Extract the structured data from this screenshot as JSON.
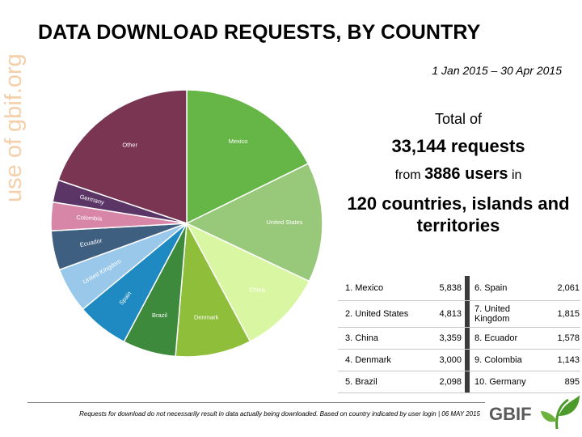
{
  "watermark": "use of gbif.org",
  "title": "DATA DOWNLOAD REQUESTS, BY COUNTRY",
  "date_range": "1 Jan 2015 – 30 Apr 2015",
  "summary": {
    "line1": "Total of",
    "line2": "33,144 requests",
    "from": "from",
    "users": "3886 users",
    "in": "in",
    "line4": "120 countries, islands and territories"
  },
  "table": [
    {
      "rank1": "1. Mexico",
      "val1": "5,838",
      "rank2": "6. Spain",
      "val2": "2,061"
    },
    {
      "rank1": "2. United States",
      "val1": "4,813",
      "rank2": "7. United Kingdom",
      "val2": "1,815"
    },
    {
      "rank1": "3. China",
      "val1": "3,359",
      "rank2": "8. Ecuador",
      "val2": "1,578"
    },
    {
      "rank1": "4. Denmark",
      "val1": "3,000",
      "rank2": "9. Colombia",
      "val2": "1,143"
    },
    {
      "rank1": "5. Brazil",
      "val1": "2,098",
      "rank2": "10. Germany",
      "val2": "895"
    }
  ],
  "footnote": "Requests for download do not necessarily result in data actually being downloaded. Based on country indicated by user login | 06 MAY 2015",
  "logo_text": "GBIF",
  "chart_data": {
    "type": "pie",
    "title": "DATA DOWNLOAD REQUESTS, BY COUNTRY",
    "categories": [
      "Mexico",
      "United States",
      "China",
      "Denmark",
      "Brazil",
      "Spain",
      "United Kingdom",
      "Ecuador",
      "Colombia",
      "Germany",
      "Other"
    ],
    "values": [
      5838,
      4813,
      3359,
      3000,
      2098,
      2061,
      1815,
      1578,
      1143,
      895,
      6544
    ],
    "colors": [
      "#66b547",
      "#98c97a",
      "#d9f7a2",
      "#8fbe3a",
      "#3e8a3c",
      "#1f8ac2",
      "#99c8ea",
      "#3e5f80",
      "#d886a8",
      "#5a3565",
      "#7a3553"
    ],
    "label_color": "#ffffff",
    "start_angle_deg": 0,
    "direction": "clockwise"
  }
}
